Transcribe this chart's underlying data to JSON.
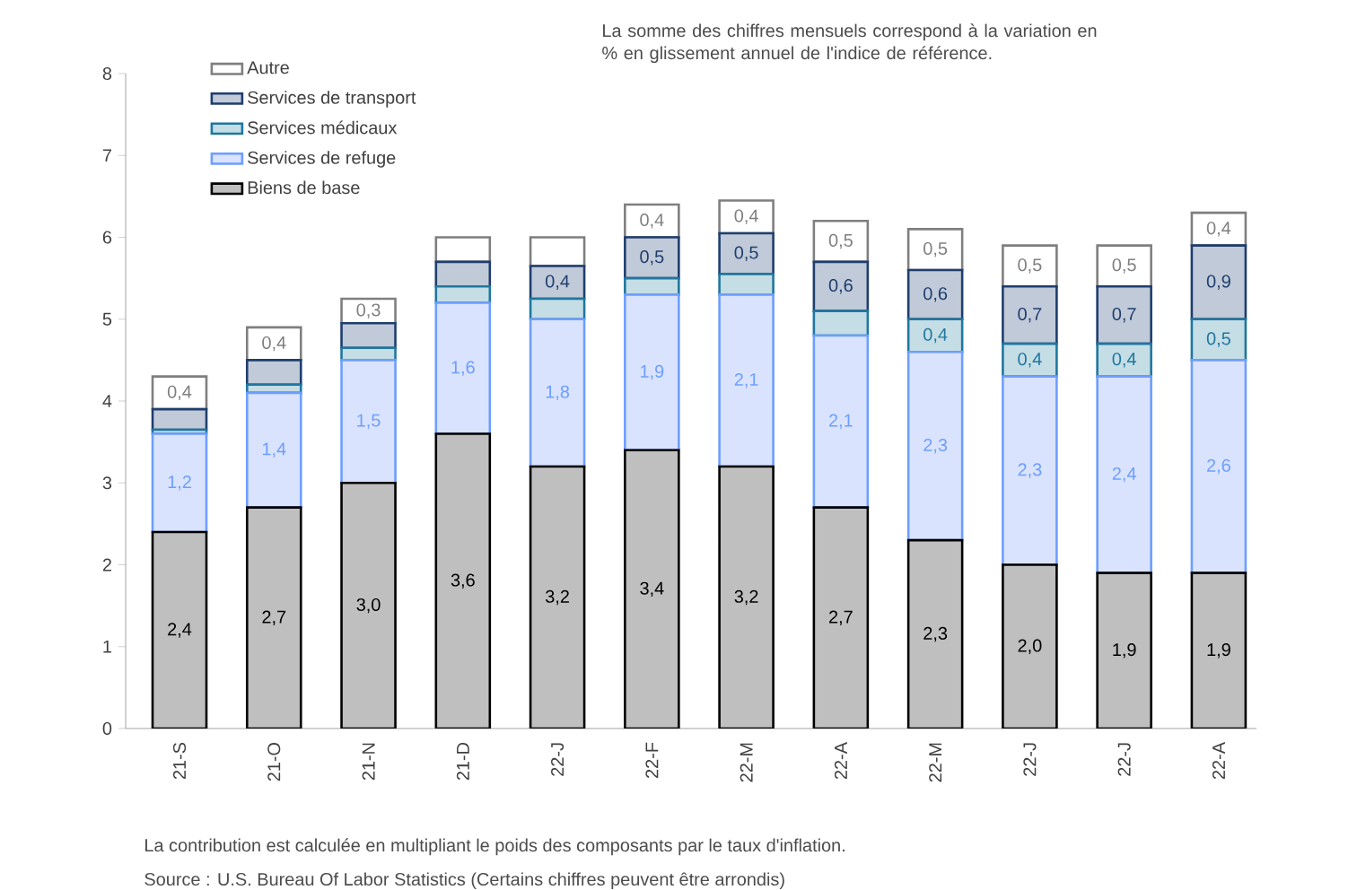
{
  "chart_data": {
    "type": "bar",
    "stacked": true,
    "legend": "top left",
    "categories": [
      "21-S",
      "21-O",
      "21-N",
      "21-D",
      "22-J",
      "22-F",
      "22-M",
      "22-A",
      "22-M",
      "22-J",
      "22-J",
      "22-A"
    ],
    "series": [
      {
        "name": "Biens de base",
        "color": "#bfbfbf",
        "values": [
          2.4,
          2.7,
          3.0,
          3.6,
          3.2,
          3.4,
          3.2,
          2.7,
          2.3,
          2.0,
          1.9,
          1.9
        ],
        "value_labels": [
          "2,4",
          "2,7",
          "3,0",
          "3,6",
          "3,2",
          "3,4",
          "3,2",
          "2,7",
          "2,3",
          "2,0",
          "1,9",
          "1,9"
        ]
      },
      {
        "name": "Services de refuge",
        "color": "#dae3fd",
        "values": [
          1.2,
          1.4,
          1.5,
          1.6,
          1.8,
          1.9,
          2.1,
          2.1,
          2.3,
          2.3,
          2.4,
          2.6
        ],
        "value_labels": [
          "1,2",
          "1,4",
          "1,5",
          "1,6",
          "1,8",
          "1,9",
          "2,1",
          "2,1",
          "2,3",
          "2,3",
          "2,4",
          "2,6"
        ]
      },
      {
        "name": "Services médicaux",
        "color": "#c5dde5",
        "values": [
          0.05,
          0.1,
          0.15,
          0.2,
          0.25,
          0.2,
          0.25,
          0.3,
          0.4,
          0.4,
          0.4,
          0.5
        ],
        "value_labels": [
          null,
          null,
          null,
          null,
          null,
          null,
          null,
          null,
          "0,4",
          "0,4",
          "0,4",
          "0,5"
        ]
      },
      {
        "name": "Services de transport",
        "color": "#c0cad8",
        "values": [
          0.25,
          0.3,
          0.3,
          0.3,
          0.4,
          0.5,
          0.5,
          0.6,
          0.6,
          0.7,
          0.7,
          0.9
        ],
        "value_labels": [
          null,
          null,
          null,
          null,
          "0,4",
          "0,5",
          "0,5",
          "0,6",
          "0,6",
          "0,7",
          "0,7",
          "0,9"
        ]
      },
      {
        "name": "Autre",
        "color": "#ffffff",
        "values": [
          0.4,
          0.4,
          0.3,
          0.3,
          0.35,
          0.4,
          0.4,
          0.5,
          0.5,
          0.5,
          0.5,
          0.4
        ],
        "value_labels": [
          "0,4",
          "0,4",
          "0,3",
          null,
          null,
          "0,4",
          "0,4",
          "0,5",
          "0,5",
          "0,5",
          "0,5",
          "0,4"
        ]
      }
    ],
    "ylim": [
      0,
      8
    ],
    "yticks": [
      0,
      1,
      2,
      3,
      4,
      5,
      6,
      7,
      8
    ],
    "annotations": [
      "La somme des chiffres mensuels correspond à la variation en % en glissement annuel de l'indice de référence.",
      "La contribution est calculée en multipliant le poids des composants par le taux d'inflation.",
      "Source : U.S. Bureau Of Labor Statistics (Certains chiffres peuvent être arrondis)"
    ]
  }
}
